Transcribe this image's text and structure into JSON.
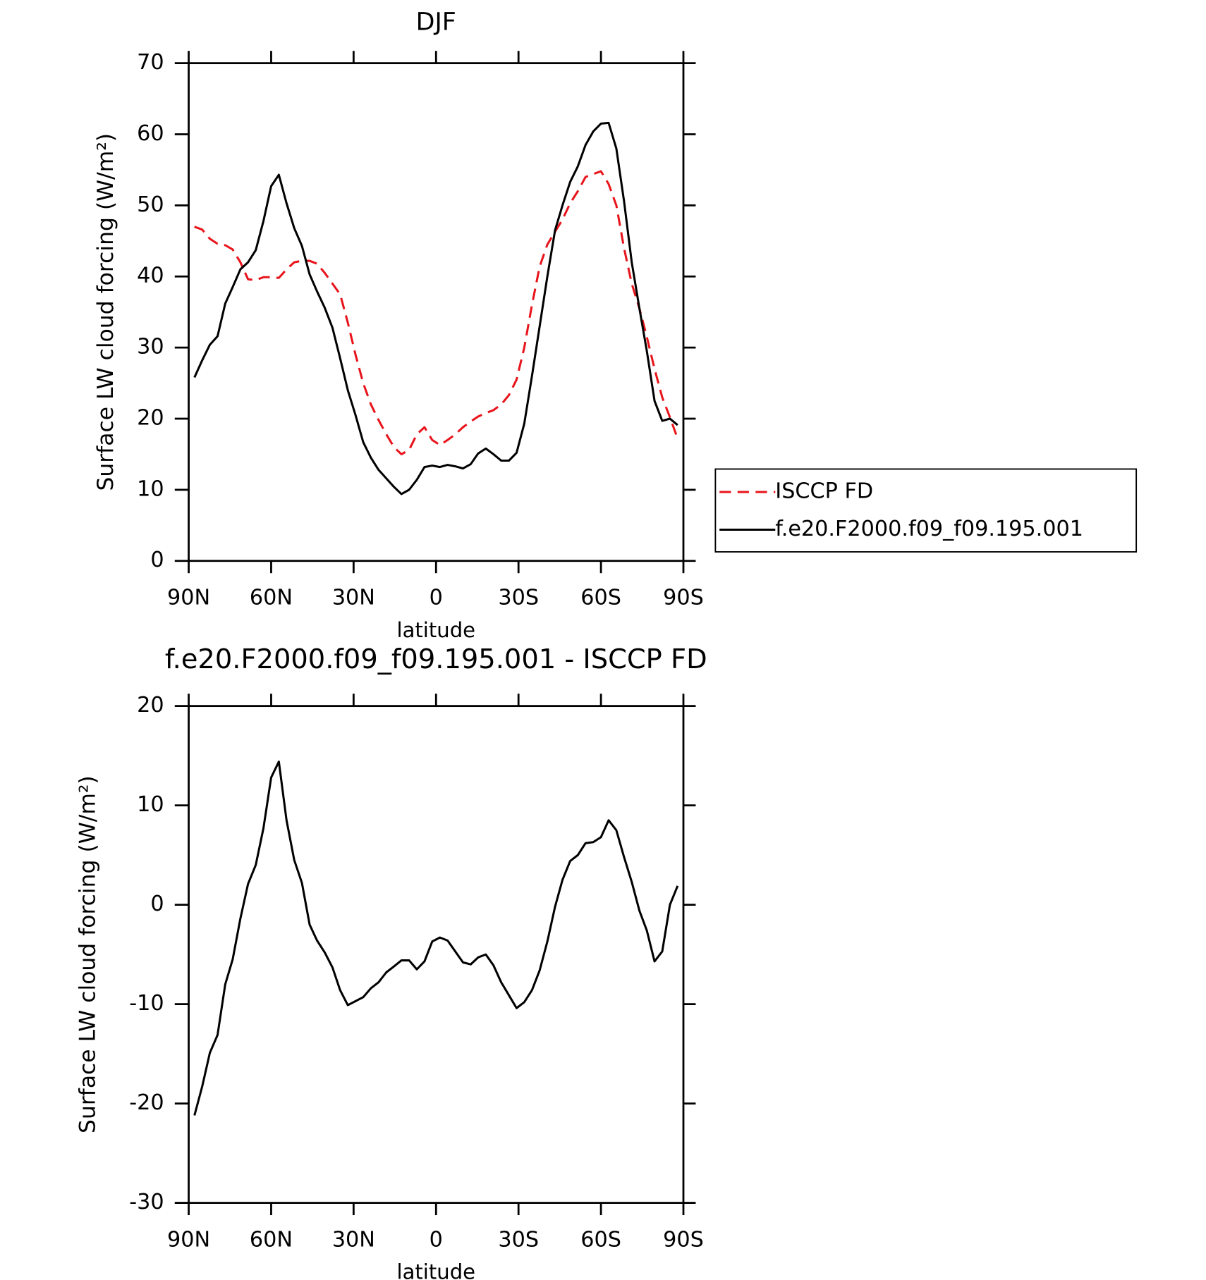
{
  "chart_data": [
    {
      "type": "line",
      "title": "DJF",
      "xlabel": "latitude",
      "ylabel": "Surface LW cloud forcing (W/m²)",
      "x": [
        87.9,
        85.1,
        82.3,
        79.5,
        76.7,
        74.0,
        71.2,
        68.4,
        65.6,
        62.8,
        60.0,
        57.2,
        54.4,
        51.6,
        48.8,
        46.0,
        43.3,
        40.5,
        37.7,
        34.9,
        32.1,
        29.3,
        26.5,
        23.7,
        20.9,
        18.1,
        15.3,
        12.6,
        9.8,
        7.0,
        4.2,
        1.4,
        -1.4,
        -4.2,
        -7.0,
        -9.8,
        -12.6,
        -15.3,
        -18.1,
        -20.9,
        -23.7,
        -26.5,
        -29.3,
        -32.1,
        -34.9,
        -37.7,
        -40.5,
        -43.3,
        -46.0,
        -48.8,
        -51.6,
        -54.4,
        -57.2,
        -60.0,
        -62.8,
        -65.6,
        -68.4,
        -71.2,
        -74.0,
        -76.7,
        -79.5,
        -82.3,
        -85.1,
        -87.9
      ],
      "series": [
        {
          "name": "ISCCP FD",
          "color": "#e8141b",
          "dash": true,
          "values": [
            47.0,
            46.6,
            45.3,
            44.6,
            44.4,
            43.8,
            42.0,
            39.6,
            39.5,
            39.9,
            39.9,
            39.8,
            41.0,
            42.0,
            42.2,
            42.2,
            41.8,
            40.5,
            39.0,
            37.5,
            33.5,
            29.0,
            25.0,
            22.0,
            19.8,
            17.8,
            16.0,
            15.0,
            15.6,
            17.8,
            18.8,
            17.0,
            16.3,
            17.0,
            17.8,
            18.8,
            19.6,
            20.3,
            20.8,
            21.2,
            22.0,
            23.3,
            25.5,
            30.0,
            36.0,
            41.4,
            44.5,
            46.3,
            48.0,
            50.3,
            52.0,
            54.0,
            54.4,
            54.8,
            53.0,
            50.0,
            44.0,
            39.0,
            35.5,
            31.5,
            27.0,
            23.0,
            20.2,
            17.2
          ]
        },
        {
          "name": "f.e20.F2000.f09_f09.195.001",
          "color": "#000000",
          "dash": false,
          "values": [
            25.8,
            28.2,
            30.4,
            31.6,
            36.2,
            38.5,
            41.0,
            42.0,
            43.7,
            47.8,
            52.7,
            54.3,
            50.3,
            46.8,
            44.3,
            40.3,
            37.9,
            35.6,
            32.8,
            28.5,
            24.0,
            20.5,
            16.7,
            14.5,
            12.8,
            11.6,
            10.4,
            9.4,
            10.0,
            11.4,
            13.2,
            13.4,
            13.2,
            13.5,
            13.3,
            13.0,
            13.6,
            15.1,
            15.8,
            15.0,
            14.1,
            14.1,
            15.2,
            19.3,
            26.0,
            33.0,
            40.0,
            46.5,
            50.0,
            53.3,
            55.5,
            58.5,
            60.4,
            61.5,
            61.6,
            58.0,
            50.6,
            42.0,
            35.5,
            29.5,
            22.5,
            19.7,
            20.0,
            19.1
          ]
        }
      ],
      "xlim": [
        90,
        -90
      ],
      "xticks": [
        {
          "value": 90,
          "label": "90N"
        },
        {
          "value": 60,
          "label": "60N"
        },
        {
          "value": 30,
          "label": "30N"
        },
        0,
        {
          "value": -30,
          "label": "30S"
        },
        {
          "value": -60,
          "label": "60S"
        },
        {
          "value": -90,
          "label": "90S"
        }
      ],
      "ylim": [
        0,
        70
      ],
      "yticks": [
        0,
        10,
        20,
        30,
        40,
        50,
        60,
        70
      ]
    },
    {
      "type": "line",
      "title": "f.e20.F2000.f09_f09.195.001 - ISCCP FD",
      "xlabel": "latitude",
      "ylabel": "Surface LW cloud forcing (W/m²)",
      "x": [
        87.9,
        85.1,
        82.3,
        79.5,
        76.7,
        74.0,
        71.2,
        68.4,
        65.6,
        62.8,
        60.0,
        57.2,
        54.4,
        51.6,
        48.8,
        46.0,
        43.3,
        40.5,
        37.7,
        34.9,
        32.1,
        29.3,
        26.5,
        23.7,
        20.9,
        18.1,
        15.3,
        12.6,
        9.8,
        7.0,
        4.2,
        1.4,
        -1.4,
        -4.2,
        -7.0,
        -9.8,
        -12.6,
        -15.3,
        -18.1,
        -20.9,
        -23.7,
        -26.5,
        -29.3,
        -32.1,
        -34.9,
        -37.7,
        -40.5,
        -43.3,
        -46.0,
        -48.8,
        -51.6,
        -54.4,
        -57.2,
        -60.0,
        -62.8,
        -65.6,
        -68.4,
        -71.2,
        -74.0,
        -76.7,
        -79.5,
        -82.3,
        -85.1,
        -87.9
      ],
      "series": [
        {
          "color": "#000000",
          "dash": false,
          "values": [
            -21.2,
            -18.3,
            -14.9,
            -13.1,
            -8.0,
            -5.5,
            -1.4,
            2.1,
            4.0,
            7.7,
            12.8,
            14.4,
            8.5,
            4.5,
            2.2,
            -2.0,
            -3.6,
            -4.8,
            -6.3,
            -8.6,
            -10.1,
            -9.7,
            -9.3,
            -8.4,
            -7.8,
            -6.8,
            -6.2,
            -5.6,
            -5.6,
            -6.5,
            -5.7,
            -3.7,
            -3.3,
            -3.6,
            -4.7,
            -5.8,
            -6.0,
            -5.3,
            -5.0,
            -6.1,
            -7.8,
            -9.1,
            -10.4,
            -9.8,
            -8.6,
            -6.6,
            -3.7,
            -0.2,
            2.5,
            4.4,
            5.0,
            6.2,
            6.3,
            6.8,
            8.5,
            7.5,
            4.8,
            2.3,
            -0.6,
            -2.6,
            -5.7,
            -4.7,
            0.0,
            1.9
          ]
        }
      ],
      "xlim": [
        90,
        -90
      ],
      "xticks": [
        {
          "value": 90,
          "label": "90N"
        },
        {
          "value": 60,
          "label": "60N"
        },
        {
          "value": 30,
          "label": "30N"
        },
        0,
        {
          "value": -30,
          "label": "30S"
        },
        {
          "value": -60,
          "label": "60S"
        },
        {
          "value": -90,
          "label": "90S"
        }
      ],
      "ylim": [
        -30,
        20
      ],
      "yticks": [
        -30,
        -20,
        -10,
        0,
        10,
        20
      ]
    }
  ]
}
